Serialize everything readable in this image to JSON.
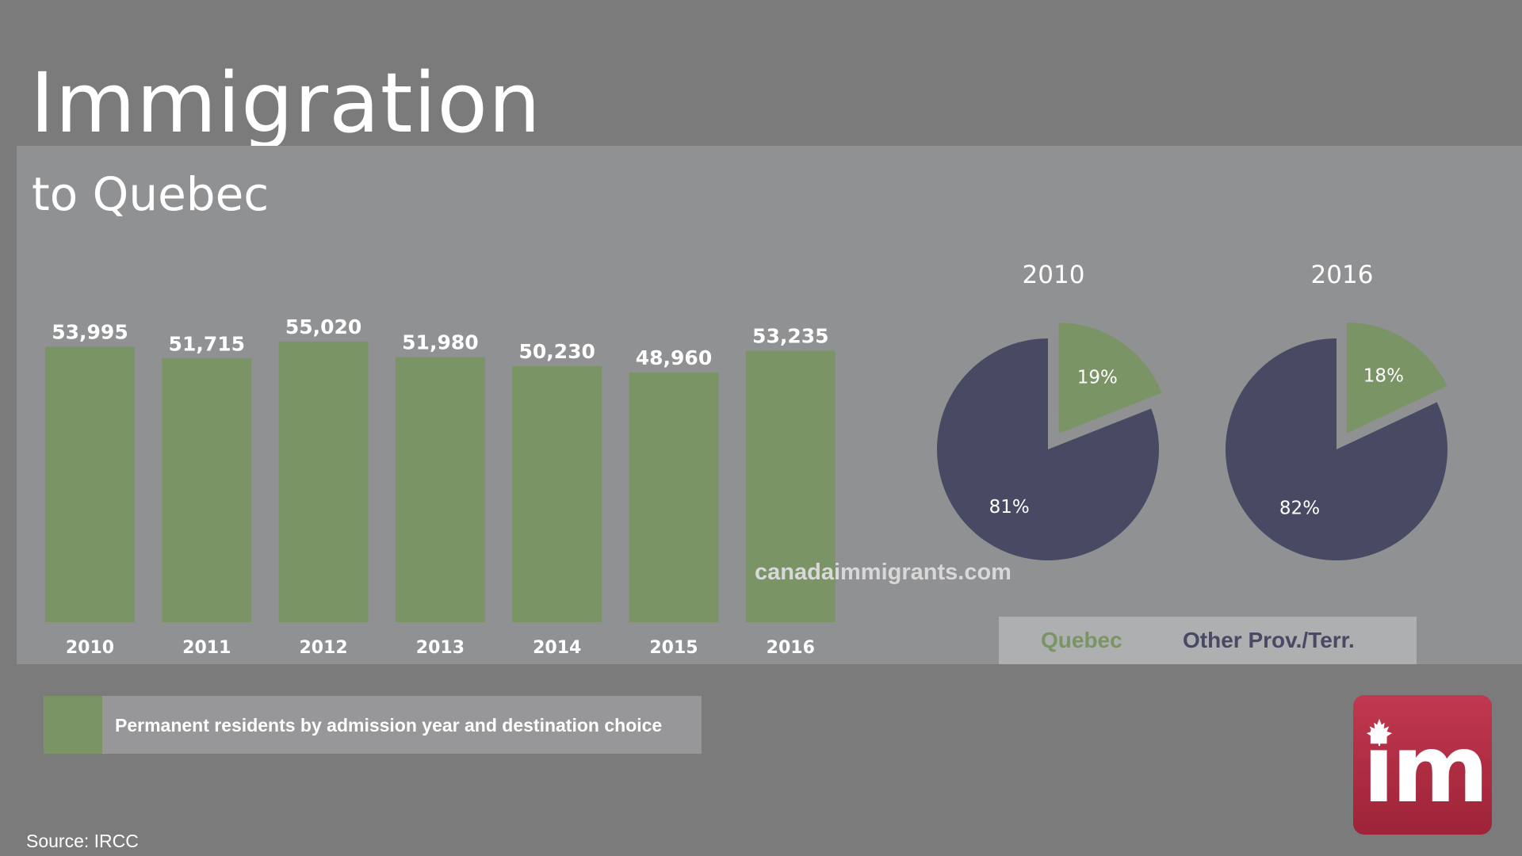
{
  "title": "Immigration",
  "subtitle": "to Quebec",
  "chart_data": [
    {
      "type": "bar",
      "categories": [
        "2010",
        "2011",
        "2012",
        "2013",
        "2014",
        "2015",
        "2016"
      ],
      "values": [
        53995,
        51715,
        55020,
        51980,
        50230,
        48960,
        53235
      ],
      "value_labels": [
        "53,995",
        "51,715",
        "55,020",
        "51,980",
        "50,230",
        "48,960",
        "53,235"
      ],
      "ylim": [
        0,
        55020
      ],
      "color": "#7a9466",
      "legend": "Permanent residents by admission year and destination choice"
    },
    {
      "type": "pie",
      "title": "2010",
      "slices": [
        {
          "name": "Quebec",
          "value": 19,
          "label": "19%",
          "color": "#7a9466"
        },
        {
          "name": "Other Prov./Terr.",
          "value": 81,
          "label": "81%",
          "color": "#484a63"
        }
      ]
    },
    {
      "type": "pie",
      "title": "2016",
      "slices": [
        {
          "name": "Quebec",
          "value": 18,
          "label": "18%",
          "color": "#7a9466"
        },
        {
          "name": "Other Prov./Terr.",
          "value": 82,
          "label": "82%",
          "color": "#484a63"
        }
      ]
    }
  ],
  "pie_legend": {
    "quebec": "Quebec",
    "other": "Other Prov./Terr."
  },
  "watermark": "canadaimmigrants.com",
  "source": "Source: IRCC",
  "logo": {
    "text": "im",
    "icon": "maple-leaf-icon"
  }
}
